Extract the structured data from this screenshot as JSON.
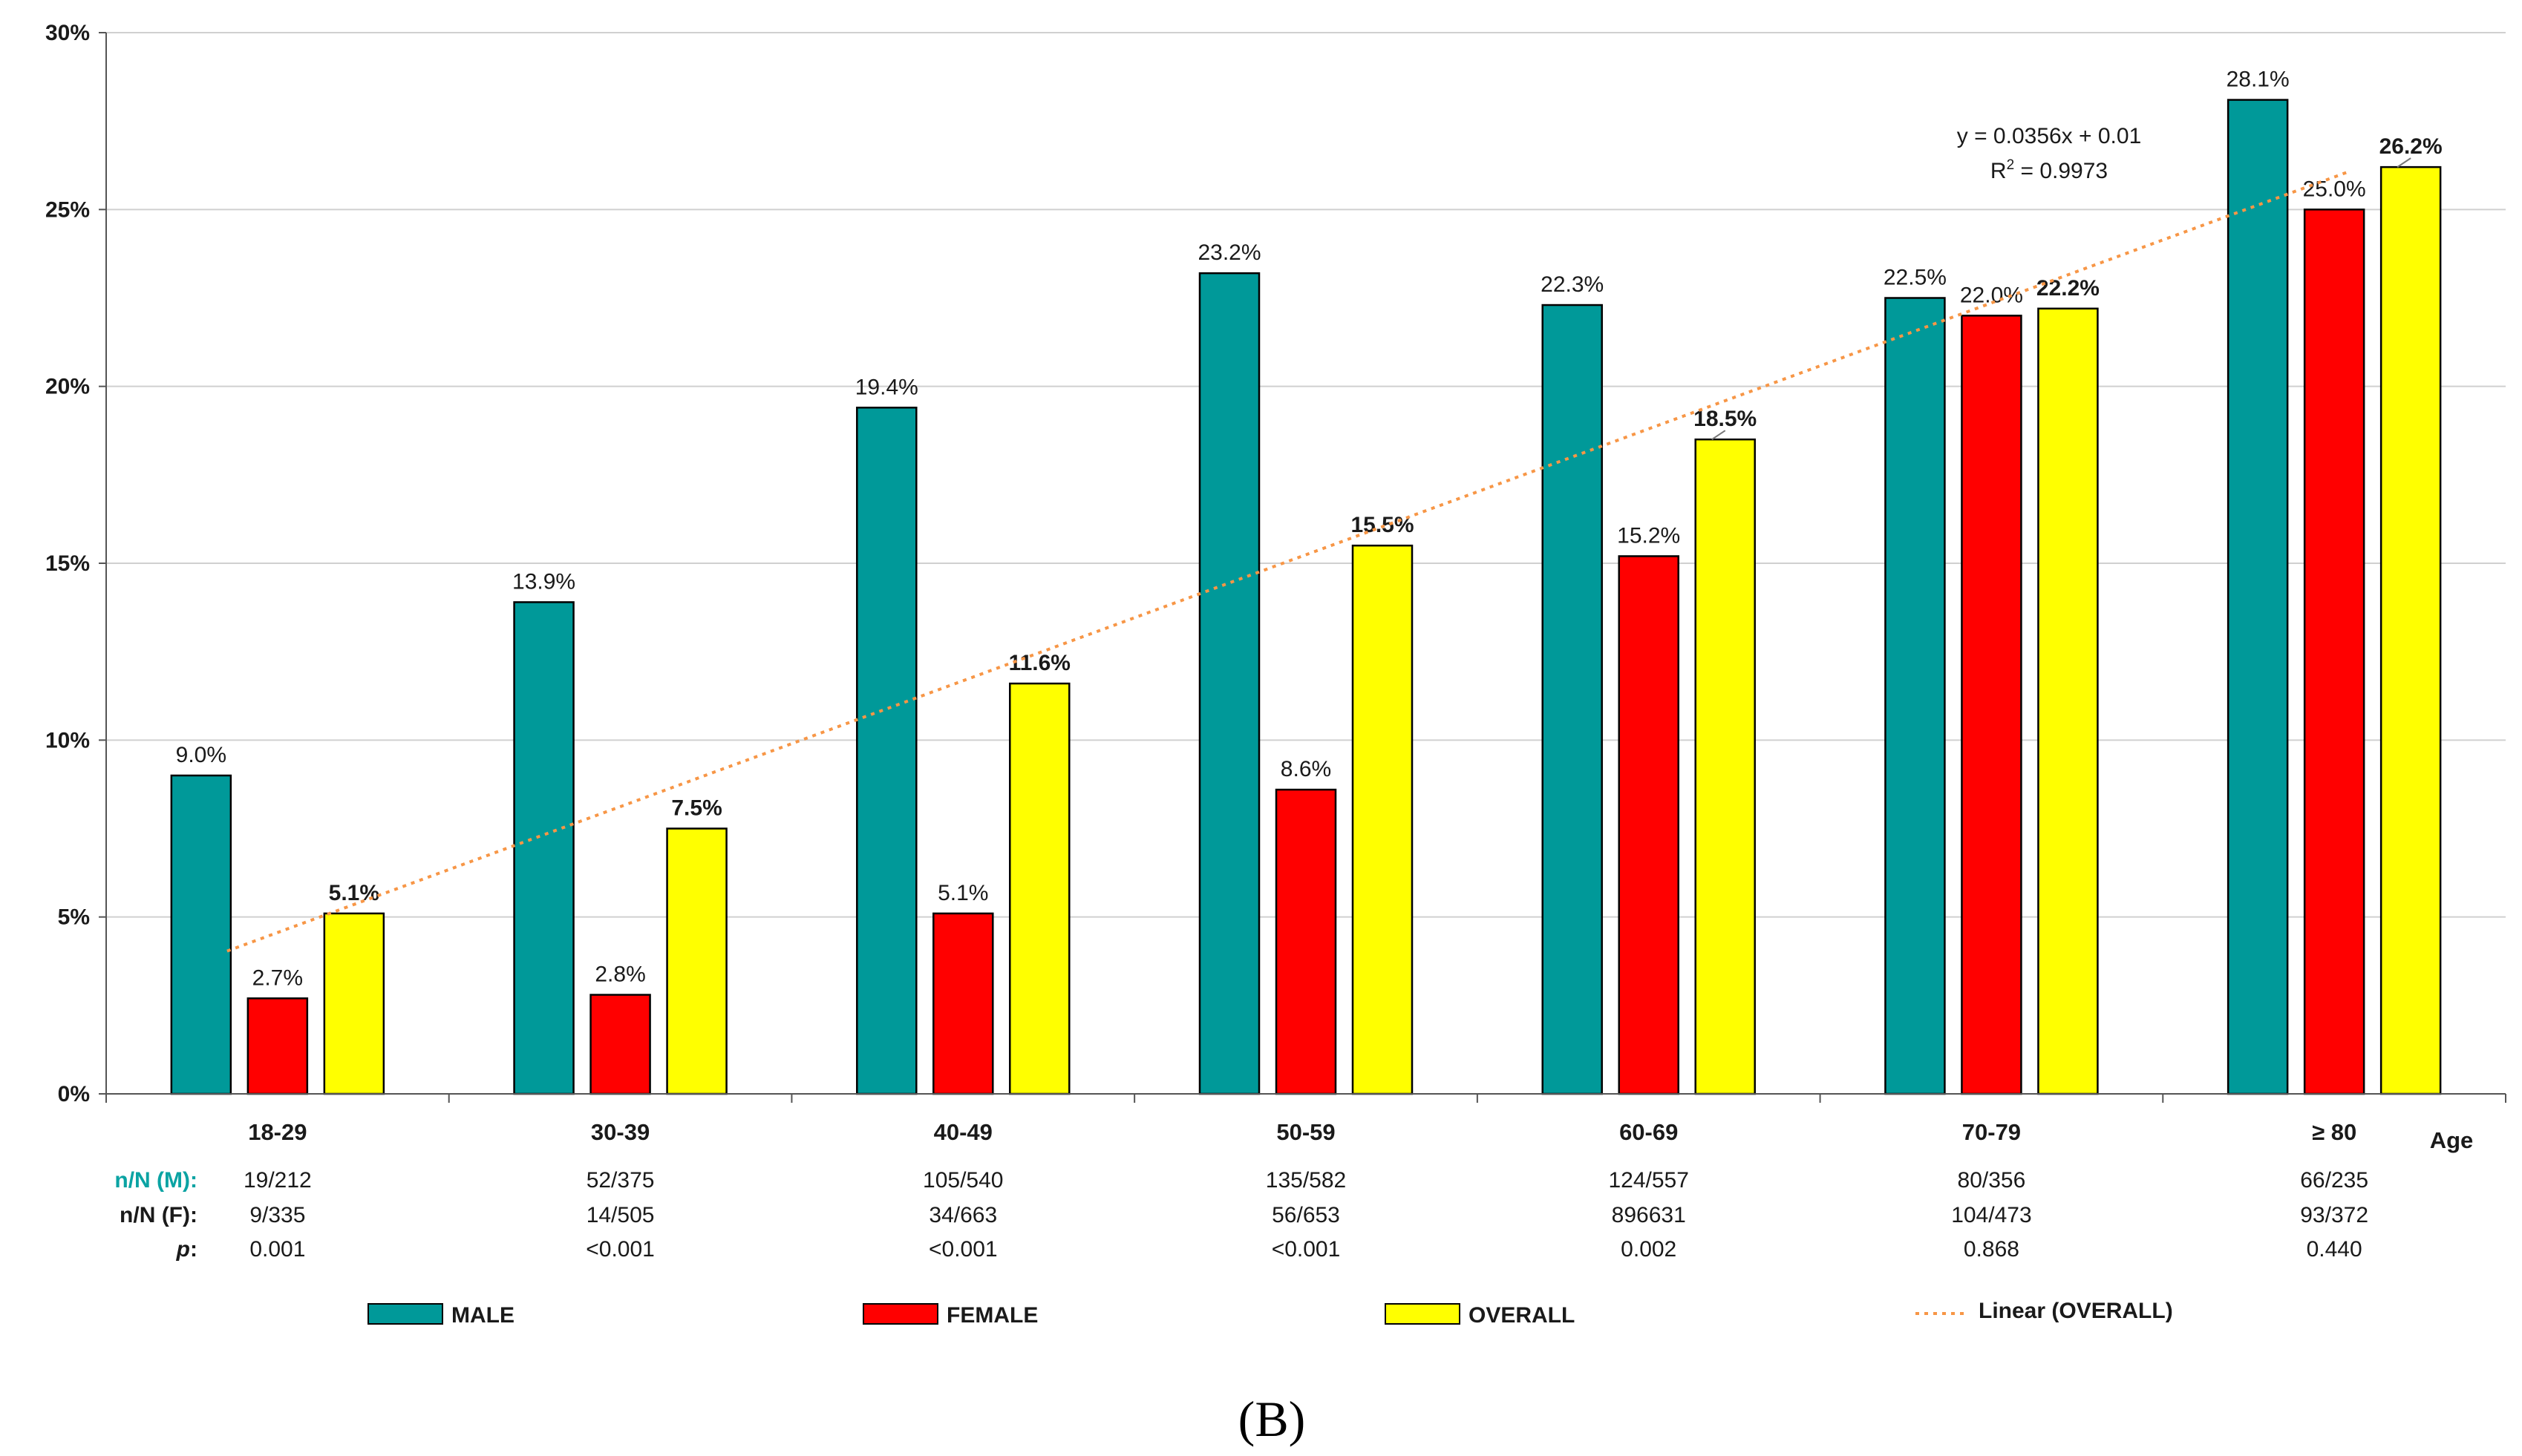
{
  "chart_data": {
    "type": "bar",
    "title": "",
    "xlabel": "Age",
    "ylabel": "",
    "ylim": [
      0,
      0.3
    ],
    "yticks": [
      0,
      0.05,
      0.1,
      0.15,
      0.2,
      0.25,
      0.3
    ],
    "ytick_labels": [
      "0%",
      "5%",
      "10%",
      "15%",
      "20%",
      "25%",
      "30%"
    ],
    "categories": [
      "18-29",
      "30-39",
      "40-49",
      "50-59",
      "60-69",
      "70-79",
      "≥ 80"
    ],
    "series": [
      {
        "name": "MALE",
        "color": "#009999",
        "bold_labels": false,
        "values": [
          0.09,
          0.139,
          0.194,
          0.232,
          0.223,
          0.225,
          0.281
        ],
        "labels": [
          "9.0%",
          "13.9%",
          "19.4%",
          "23.2%",
          "22.3%",
          "22.5%",
          "28.1%"
        ]
      },
      {
        "name": "FEMALE",
        "color": "#ff0000",
        "bold_labels": false,
        "values": [
          0.027,
          0.028,
          0.051,
          0.086,
          0.152,
          0.22,
          0.25
        ],
        "labels": [
          "2.7%",
          "2.8%",
          "5.1%",
          "8.6%",
          "15.2%",
          "22.0%",
          "25.0%"
        ]
      },
      {
        "name": "OVERALL",
        "color": "#ffff00",
        "bold_labels": true,
        "values": [
          0.051,
          0.075,
          0.116,
          0.155,
          0.185,
          0.222,
          0.262
        ],
        "labels": [
          "5.1%",
          "7.5%",
          "11.6%",
          "15.5%",
          "18.5%",
          "22.2%",
          "26.2%"
        ]
      }
    ],
    "trendline": {
      "name": "Linear (OVERALL)",
      "color": "#f79646",
      "slope": 0.0356,
      "intercept": 0.01,
      "equation": "y = 0.0356x + 0.01",
      "r2_label": "R",
      "r2_sup": "2",
      "r2_value": " = 0.9973"
    },
    "table_rows": [
      {
        "label": "n/N (M):",
        "values": [
          "19/212",
          "52/375",
          "105/540",
          "135/582",
          "124/557",
          "80/356",
          "66/235"
        ]
      },
      {
        "label": "n/N (F):",
        "values": [
          "9/335",
          "14/505",
          "34/663",
          "56/653",
          "896631",
          "104/473",
          "93/372"
        ]
      },
      {
        "label": "p",
        "suffix": ":",
        "values": [
          "0.001",
          "<0.001",
          "<0.001",
          "<0.001",
          "0.002",
          "0.868",
          "0.440"
        ]
      }
    ],
    "legend": [
      "MALE",
      "FEMALE",
      "OVERALL",
      "Linear (OVERALL)"
    ],
    "legend_position": "bottom",
    "panel_label": "(B)"
  }
}
